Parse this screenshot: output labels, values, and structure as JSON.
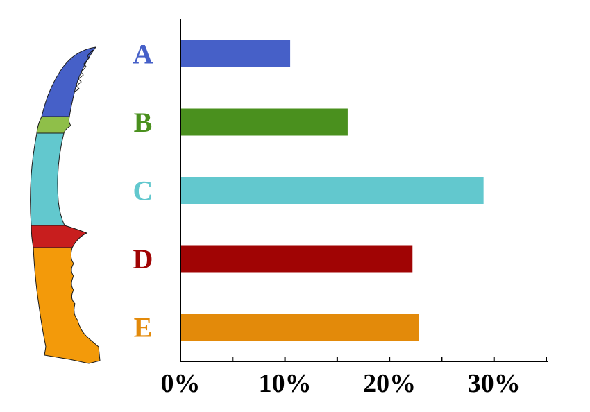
{
  "chart_data": {
    "type": "bar",
    "orientation": "horizontal",
    "categories": [
      "A",
      "B",
      "C",
      "D",
      "E"
    ],
    "values": [
      10.5,
      16,
      29,
      22.2,
      22.8
    ],
    "colors": [
      "#4660c8",
      "#4a901e",
      "#62c8ce",
      "#a00404",
      "#e38a0a"
    ],
    "xlim": [
      0,
      35
    ],
    "xticks": [
      0,
      5,
      10,
      15,
      20,
      25,
      30,
      35
    ],
    "xtick_labels": [
      "0%",
      "",
      "10%",
      "",
      "20%",
      "",
      "30%",
      ""
    ],
    "grid": false,
    "legend": "none"
  },
  "figure": {
    "illustration": "segmented-tooth-illustration"
  }
}
